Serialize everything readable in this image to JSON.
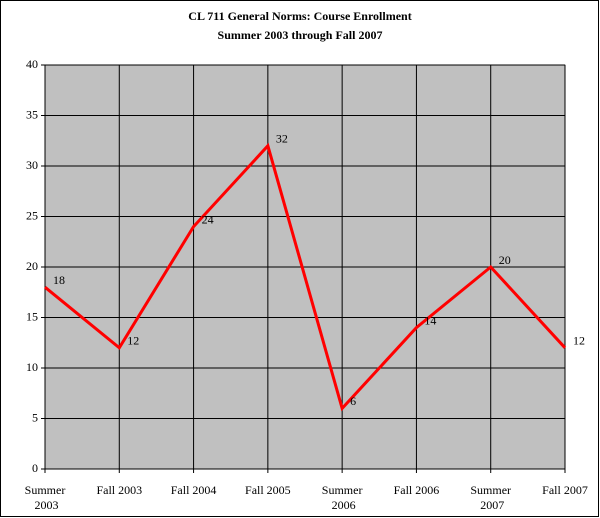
{
  "chart_data": {
    "type": "line",
    "title": "CL 711 General Norms: Course Enrollment",
    "subtitle": "Summer 2003 through Fall 2007",
    "categories": [
      "Summer 2003",
      "Fall 2003",
      "Fall 2004",
      "Fall 2005",
      "Summer 2006",
      "Fall 2006",
      "Summer 2007",
      "Fall 2007"
    ],
    "series": [
      {
        "name": "Enrollment",
        "color": "#ff0000",
        "values": [
          18,
          12,
          24,
          32,
          6,
          14,
          20,
          12
        ]
      }
    ],
    "ylim": [
      0,
      40
    ],
    "yticks": [
      0,
      5,
      10,
      15,
      20,
      25,
      30,
      35,
      40
    ],
    "grid": true
  }
}
